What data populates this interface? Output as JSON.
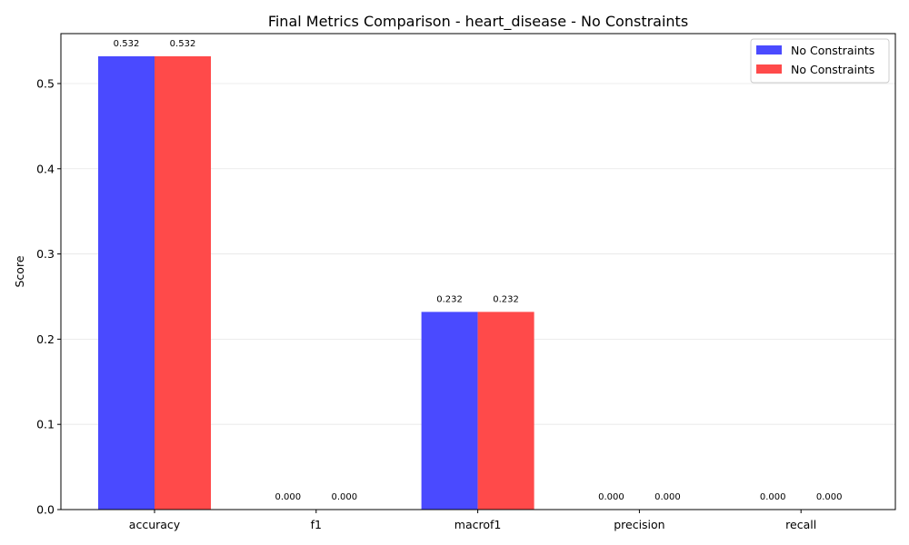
{
  "chart_data": {
    "type": "bar",
    "title": "Final Metrics Comparison - heart_disease - No Constraints",
    "xlabel": "",
    "ylabel": "Score",
    "categories": [
      "accuracy",
      "f1",
      "macrof1",
      "precision",
      "recall"
    ],
    "series": [
      {
        "name": "No Constraints",
        "color": "#4a4aff",
        "values": [
          0.532,
          0.0,
          0.232,
          0.0,
          0.0
        ],
        "labels": [
          "0.532",
          "0.000",
          "0.232",
          "0.000",
          "0.000"
        ]
      },
      {
        "name": "No Constraints",
        "color": "#ff4a4a",
        "values": [
          0.532,
          0.0,
          0.232,
          0.0,
          0.0
        ],
        "labels": [
          "0.532",
          "0.000",
          "0.232",
          "0.000",
          "0.000"
        ]
      }
    ],
    "ylim": [
      0,
      0.5586
    ],
    "yticks": [
      "0.0",
      "0.1",
      "0.2",
      "0.3",
      "0.4",
      "0.5"
    ],
    "grid": "horizontal",
    "legend": "top-right"
  }
}
